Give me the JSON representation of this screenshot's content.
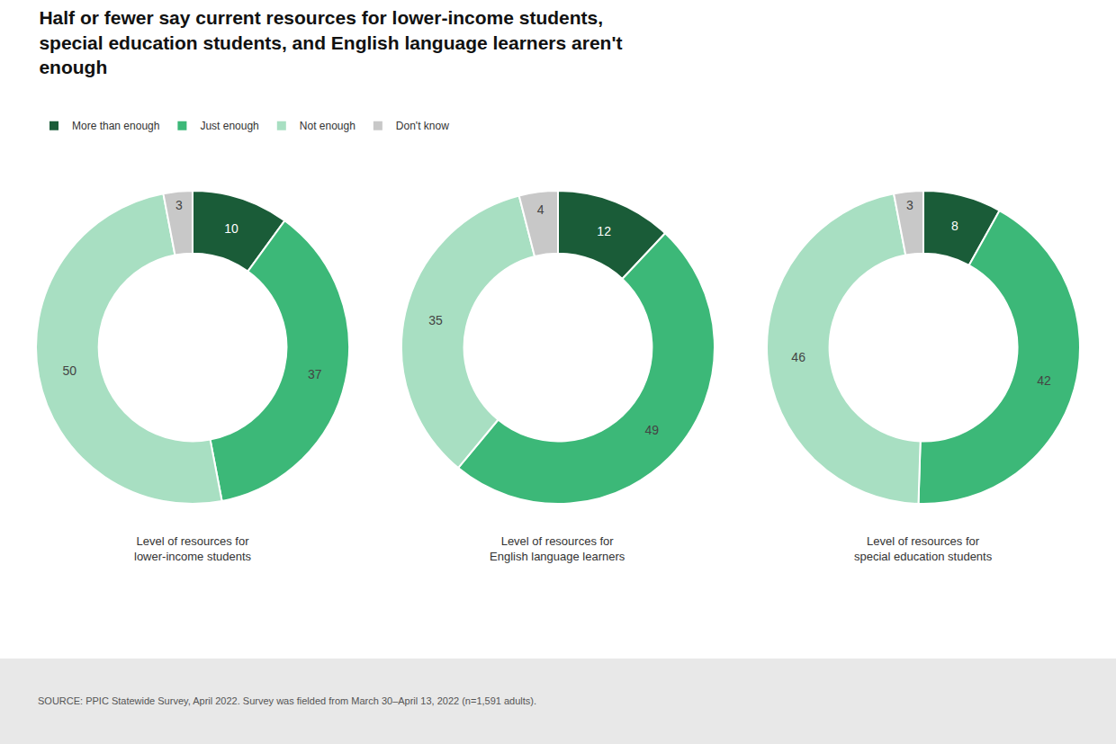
{
  "title": "Half or fewer say current resources for lower-income students,\nspecial education students, and English language learners aren't\nenough",
  "annotations": [
    "SOURCE: PPIC Statewide Survey, April 2022. Survey was fielded from March 30–April 13, 2022 (n=1,591 adults)."
  ],
  "chart_data": [
    {
      "type": "pie",
      "title": "Level of resources for\nlower-income students",
      "categories": [
        "More than enough",
        "Just enough",
        "Not enough",
        "Don't know"
      ],
      "values": [
        10,
        37,
        50,
        3
      ],
      "colors": [
        "#1a5c38",
        "#3cb878",
        "#a8dfc2",
        "#c8c8c8"
      ],
      "data_labels": true,
      "legend": "top"
    },
    {
      "type": "pie",
      "title": "Level of resources for\nEnglish language learners",
      "categories": [
        "More than enough",
        "Just enough",
        "Not enough",
        "Don't know"
      ],
      "values": [
        12,
        49,
        35,
        4
      ],
      "colors": [
        "#1a5c38",
        "#3cb878",
        "#a8dfc2",
        "#c8c8c8"
      ],
      "data_labels": true,
      "legend": "top"
    },
    {
      "type": "pie",
      "title": "Level of resources for\nspecial education students",
      "categories": [
        "More than enough",
        "Just enough",
        "Not enough",
        "Don't know"
      ],
      "values": [
        8,
        42,
        46,
        3
      ],
      "colors": [
        "#1a5c38",
        "#3cb878",
        "#a8dfc2",
        "#c8c8c8"
      ],
      "data_labels": true,
      "legend": "top"
    }
  ]
}
